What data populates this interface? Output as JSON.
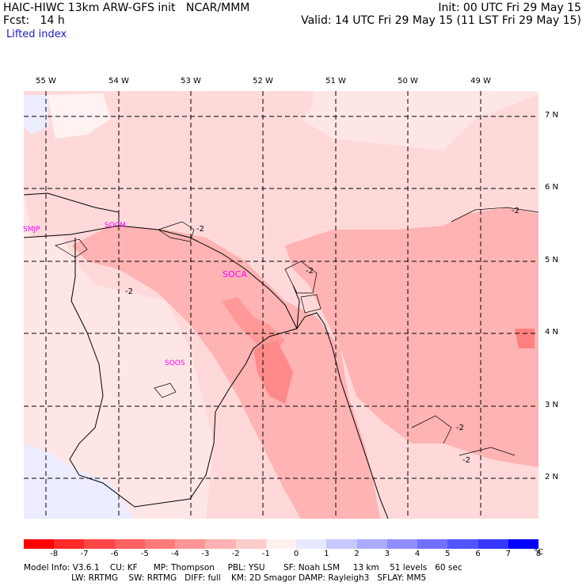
{
  "header": {
    "left1": "HAIC-HIWC 13km ARW-GFS init   NCAR/MMM",
    "left2": "Fcst:   14 h",
    "right1": "Init: 00 UTC Fri 29 May 15",
    "right2": "Valid: 14 UTC Fri 29 May 15 (11 LST Fri 29 May 15)",
    "field": "Lifted index"
  },
  "lon_labels": [
    "55 W",
    "54 W",
    "53 W",
    "52 W",
    "51 W",
    "50 W",
    "49 W"
  ],
  "lat_labels": [
    "7 N",
    "6 N",
    "5 N",
    "4 N",
    "3 N",
    "2 N"
  ],
  "stations": {
    "smjp": "SMJP",
    "socm": "SOCM",
    "soca": "SOCA",
    "sods": "SOOS"
  },
  "contour_label": "-2",
  "colorbar": {
    "unit": "°C",
    "ticks": [
      "-8",
      "-7",
      "-6",
      "-5",
      "-4",
      "-3",
      "-2",
      "-1",
      "0",
      "1",
      "2",
      "3",
      "4",
      "5",
      "6",
      "7",
      "8"
    ],
    "colors": [
      "#ff0000",
      "#ff2a2a",
      "#ff4545",
      "#ff6060",
      "#ff7b7b",
      "#ff9696",
      "#ffb1b1",
      "#ffcccc",
      "#fff0f0",
      "#e8e8ff",
      "#c8c8ff",
      "#ababff",
      "#8e8eff",
      "#7171ff",
      "#5454ff",
      "#3737ff",
      "#0000ff"
    ]
  },
  "footer": {
    "line1": "Model Info: V3.6.1    CU: KF      MP: Thompson     PBL: YSU       SF: Noah LSM     13 km    51 levels   60 sec",
    "line2": "                  LW: RRTMG    SW: RRTMG   DIFF: full    KM: 2D Smagor DAMP: Rayleigh3   SFLAY: MM5"
  }
}
